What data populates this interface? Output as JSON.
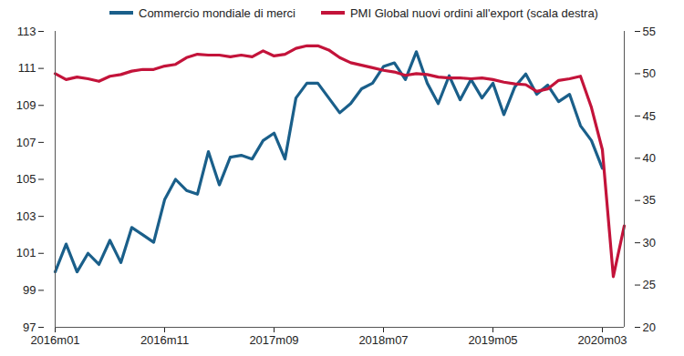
{
  "chart_data": {
    "type": "line",
    "categories": [
      "2016m01",
      null,
      null,
      null,
      null,
      null,
      null,
      null,
      null,
      null,
      "2016m11",
      null,
      null,
      null,
      null,
      null,
      null,
      null,
      null,
      null,
      "2017m09",
      null,
      null,
      null,
      null,
      null,
      null,
      null,
      null,
      null,
      "2018m07",
      null,
      null,
      null,
      null,
      null,
      null,
      null,
      null,
      null,
      "2019m05",
      null,
      null,
      null,
      null,
      null,
      null,
      null,
      null,
      null,
      "2020m03",
      null,
      null
    ],
    "series": [
      {
        "name": "Commercio mondiale di merci",
        "color": "#1a5f8a",
        "values": [
          100.0,
          101.5,
          100.0,
          101.0,
          100.4,
          101.7,
          100.5,
          102.4,
          102.0,
          101.6,
          103.9,
          105.0,
          104.4,
          104.2,
          106.5,
          104.7,
          106.2,
          106.3,
          106.1,
          107.1,
          107.5,
          106.1,
          109.4,
          110.2,
          110.2,
          109.4,
          108.6,
          109.1,
          109.9,
          110.2,
          111.1,
          111.3,
          110.4,
          111.9,
          110.2,
          109.1,
          110.6,
          109.3,
          110.4,
          109.4,
          110.2,
          108.5,
          110.0,
          110.7,
          109.6,
          110.1,
          109.2,
          109.6,
          107.9,
          107.1,
          105.6,
          null,
          null
        ]
      },
      {
        "name": "PMI Global nuovi ordini all'export (scala destra)",
        "color": "#c3133a",
        "axis": "y2",
        "values": [
          50.0,
          49.3,
          49.6,
          49.4,
          49.1,
          49.7,
          49.9,
          50.3,
          50.5,
          50.5,
          50.9,
          51.1,
          51.9,
          52.3,
          52.2,
          52.2,
          52.0,
          52.2,
          52.0,
          52.7,
          52.1,
          52.3,
          53.0,
          53.3,
          53.3,
          52.8,
          51.9,
          51.3,
          51.0,
          50.7,
          50.4,
          50.2,
          49.8,
          50.0,
          49.9,
          49.6,
          49.5,
          49.5,
          49.4,
          49.5,
          49.3,
          49.0,
          48.8,
          48.7,
          47.9,
          48.2,
          49.2,
          49.4,
          49.7,
          46.0,
          41.0,
          26.0,
          32.0
        ]
      }
    ],
    "ylim": [
      97,
      113
    ],
    "yticks": [
      97,
      99,
      101,
      103,
      105,
      107,
      109,
      111,
      113
    ],
    "y2lim": [
      20,
      55
    ],
    "y2ticks": [
      20,
      25,
      30,
      35,
      40,
      45,
      50,
      55
    ],
    "grid": false,
    "legend": "top"
  }
}
